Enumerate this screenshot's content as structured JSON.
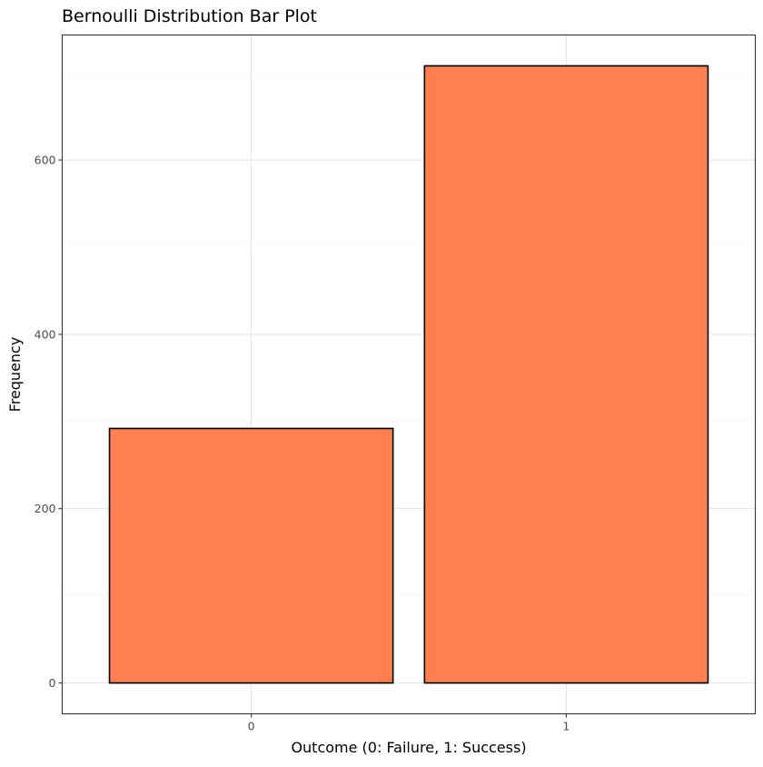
{
  "chart_data": {
    "type": "bar",
    "title": "Bernoulli Distribution Bar Plot",
    "xlabel": "Outcome (0: Failure, 1: Success)",
    "ylabel": "Frequency",
    "categories": [
      "0",
      "1"
    ],
    "values": [
      292,
      708
    ],
    "ylim": [
      -35.4,
      743.4
    ],
    "yticks": [
      0,
      200,
      400,
      600
    ],
    "ytick_labels": [
      "0",
      "200",
      "400",
      "600"
    ],
    "grid": true,
    "bar_fill": "#FF7F50",
    "bar_stroke": "#000000"
  }
}
